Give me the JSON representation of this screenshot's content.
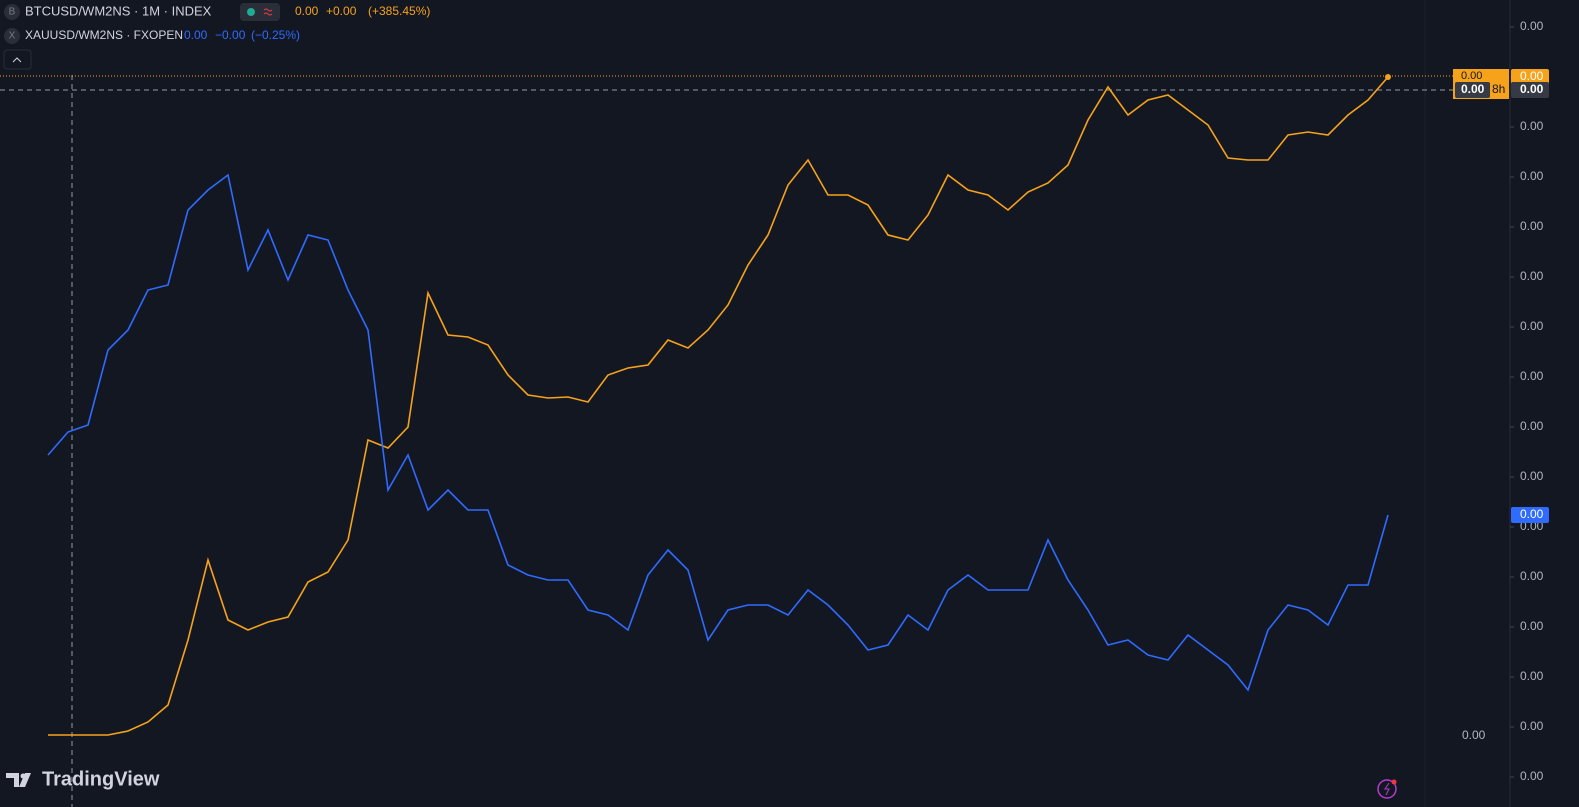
{
  "chart_data": {
    "type": "line",
    "series": [
      {
        "name": "BTCUSD/WM2NS · 1M · INDEX",
        "icon": "B",
        "color": "#f7a21b",
        "legend_values": [
          "0.00",
          "+0.00",
          "(+385.45%)"
        ],
        "last_label": "0.00",
        "values": [
          0.84,
          0.84,
          0.84,
          0.84,
          0.92,
          1.1,
          1.44,
          2.74,
          4.34,
          3.14,
          2.94,
          3.1,
          3.2,
          3.9,
          4.1,
          4.74,
          6.74,
          6.58,
          7.0,
          9.68,
          8.84,
          8.8,
          8.64,
          8.04,
          7.64,
          7.58,
          7.6,
          7.5,
          8.04,
          8.18,
          8.24,
          8.74,
          8.58,
          8.94,
          9.44,
          10.24,
          10.84,
          11.84,
          12.34,
          11.64,
          11.64,
          11.44,
          10.84,
          10.74,
          11.24,
          12.04,
          11.74,
          11.64,
          11.34,
          11.7,
          11.88,
          12.24,
          13.14,
          13.8,
          13.24,
          13.54,
          13.64,
          13.34,
          13.04,
          12.38,
          12.34,
          12.34,
          12.84,
          12.9,
          12.84,
          13.24,
          13.54,
          14
        ]
      },
      {
        "name": "XAUUSD/WM2NS · FXOPEN",
        "icon": "X",
        "color": "#2f6bff",
        "legend_values": [
          "0.00",
          "−0.00",
          "(−0.25%)"
        ],
        "last_label": "0.00",
        "values": [
          6.44,
          6.9,
          7.04,
          8.54,
          8.94,
          9.74,
          9.84,
          11.34,
          11.74,
          12.04,
          10.14,
          10.94,
          9.94,
          10.84,
          10.74,
          9.74,
          8.94,
          5.74,
          6.44,
          5.34,
          5.74,
          5.34,
          5.34,
          4.24,
          4.04,
          3.94,
          3.94,
          3.34,
          3.24,
          2.94,
          4.04,
          4.54,
          4.14,
          2.74,
          3.34,
          3.44,
          3.44,
          3.24,
          3.74,
          3.44,
          3.04,
          2.54,
          2.64,
          3.24,
          2.94,
          3.74,
          4.04,
          3.74,
          3.74,
          3.74,
          4.74,
          3.94,
          3.34,
          2.64,
          2.74,
          2.44,
          2.34,
          2.84,
          2.54,
          2.24,
          1.74,
          2.94,
          3.44,
          3.34,
          3.04,
          3.84,
          3.84,
          5.24
        ]
      }
    ],
    "ylim": [
      0,
      15
    ],
    "yticks": [
      {
        "value": 0,
        "label": "0.00"
      },
      {
        "value": 1,
        "label": "0.00"
      },
      {
        "value": 2,
        "label": "0.00"
      },
      {
        "value": 3,
        "label": "0.00"
      },
      {
        "value": 4,
        "label": "0.00"
      },
      {
        "value": 5,
        "label": "0.00"
      },
      {
        "value": 6,
        "label": "0.00"
      },
      {
        "value": 7,
        "label": "0.00"
      },
      {
        "value": 8,
        "label": "0.00"
      },
      {
        "value": 9,
        "label": "0.00"
      },
      {
        "value": 10,
        "label": "0.00"
      },
      {
        "value": 11,
        "label": "0.00"
      },
      {
        "value": 12,
        "label": "0.00"
      },
      {
        "value": 13,
        "label": "0.00"
      },
      {
        "value": 14,
        "label": "0.00"
      },
      {
        "value": 15,
        "label": "0.00"
      }
    ],
    "crosshair_label": "0.00",
    "overlay_label": "0.00",
    "countdown": "8h",
    "left_scale_label": "0.00",
    "watermark": "TradingView"
  }
}
